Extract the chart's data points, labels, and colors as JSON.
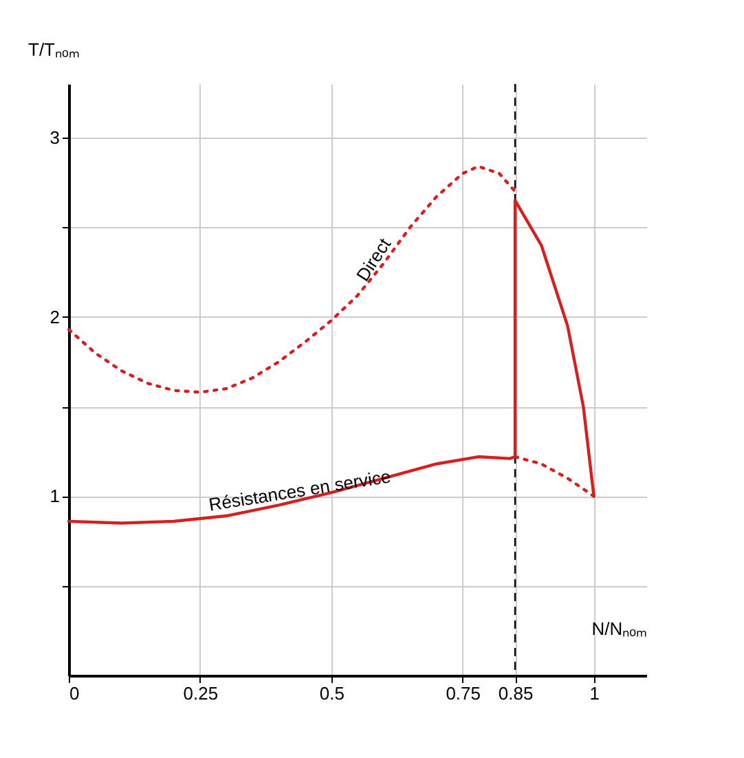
{
  "chart_data": {
    "type": "line",
    "xlabel": "N/Nₙₒₘ",
    "ylabel": "T/Tₙₒₘ",
    "xlim": [
      0,
      1.1
    ],
    "ylim": [
      0,
      3.3
    ],
    "xticks": [
      0,
      0.25,
      0.5,
      0.75,
      0.85,
      1
    ],
    "yticks": [
      {
        "value": 0.5,
        "label": null
      },
      1,
      {
        "value": 1.5,
        "label": null
      },
      2,
      {
        "value": 2.5,
        "label": null
      },
      3
    ],
    "grid": true,
    "marker": "none",
    "series": [
      {
        "color": "#d62020",
        "line_style": "solid",
        "x": [
          0,
          0.1,
          0.2,
          0.3,
          0.4,
          0.5,
          0.6,
          0.7,
          0.78,
          0.84,
          0.85,
          0.85,
          0.9,
          0.95,
          0.98,
          1.0
        ],
        "values": [
          0.86,
          0.85,
          0.86,
          0.89,
          0.95,
          1.02,
          1.1,
          1.18,
          1.22,
          1.21,
          1.22,
          2.65,
          2.4,
          1.95,
          1.5,
          1.0
        ]
      },
      {
        "color": "#d62020",
        "line_style": "dotted",
        "x": [
          0,
          0.05,
          0.1,
          0.15,
          0.2,
          0.25,
          0.3,
          0.35,
          0.4,
          0.45,
          0.5,
          0.55,
          0.6,
          0.65,
          0.7,
          0.75,
          0.78,
          0.82,
          0.85
        ],
        "values": [
          1.93,
          1.8,
          1.7,
          1.63,
          1.59,
          1.58,
          1.6,
          1.66,
          1.75,
          1.86,
          1.98,
          2.12,
          2.3,
          2.5,
          2.67,
          2.8,
          2.84,
          2.8,
          2.7
        ]
      },
      {
        "color": "#d62020",
        "line_style": "dotted",
        "x": [
          0.85,
          0.9,
          0.95,
          1.0
        ],
        "values": [
          1.22,
          1.18,
          1.1,
          1.0
        ]
      }
    ],
    "ref_lines": [
      {
        "axis": "x",
        "value": 0.85,
        "color": "#000000",
        "line_style": "dashed"
      }
    ],
    "annotations": [
      "Direct",
      "Résistances en service"
    ]
  }
}
